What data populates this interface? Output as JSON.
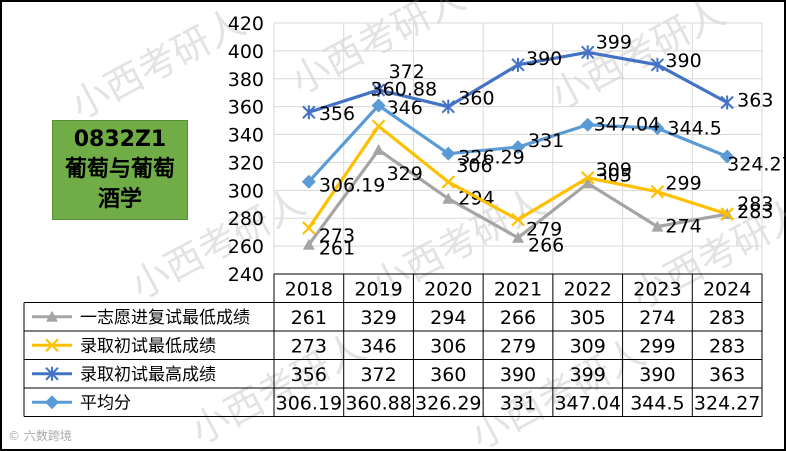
{
  "badge": {
    "line1": "0832Z1",
    "line2": "葡萄与葡萄",
    "line3": "酒学"
  },
  "watermark": "小西考研人",
  "footer": "© 六数跨境",
  "chart_data": {
    "type": "line",
    "categories": [
      "2018",
      "2019",
      "2020",
      "2021",
      "2022",
      "2023",
      "2024"
    ],
    "ylim": [
      240,
      420
    ],
    "yticks": [
      240,
      260,
      280,
      300,
      320,
      340,
      360,
      380,
      400,
      420
    ],
    "grid": true,
    "legend_placement": "table-left",
    "series": [
      {
        "name": "一志愿进复试最低成绩",
        "values": [
          261,
          329,
          294,
          266,
          305,
          274,
          283
        ],
        "labels": [
          "261",
          "329",
          "294",
          "266",
          "305",
          "274",
          "283"
        ],
        "color": "#a5a5a5",
        "marker": "triangle"
      },
      {
        "name": "录取初试最低成绩",
        "values": [
          273,
          346,
          306,
          279,
          309,
          299,
          283
        ],
        "labels": [
          "273",
          "346",
          "306",
          "279",
          "309",
          "299",
          "283"
        ],
        "color": "#ffc000",
        "marker": "x"
      },
      {
        "name": "录取初试最高成绩",
        "values": [
          356,
          372,
          360,
          390,
          399,
          390,
          363
        ],
        "labels": [
          "356",
          "372",
          "360",
          "390",
          "399",
          "390",
          "363"
        ],
        "color": "#4472c4",
        "marker": "star"
      },
      {
        "name": "平均分",
        "values": [
          306.19,
          360.88,
          326.29,
          331,
          347.04,
          344.5,
          324.27
        ],
        "labels": [
          "306.19",
          "360.88",
          "326.29",
          "331",
          "347.04",
          "344.5",
          "324.27"
        ],
        "color": "#5b9bd5",
        "marker": "diamond"
      }
    ]
  }
}
